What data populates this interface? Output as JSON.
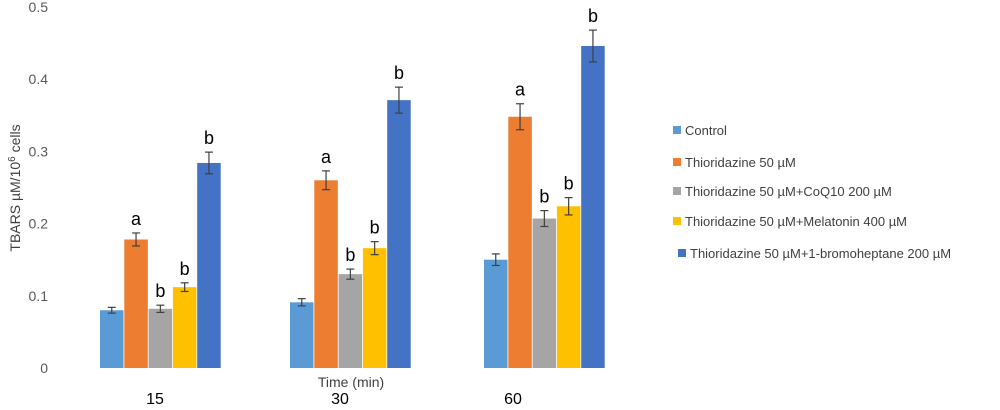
{
  "chart_data": {
    "type": "bar",
    "categories": [
      "15",
      "30",
      "60"
    ],
    "xlabel": "Time (min)",
    "ylabel": "TBARS µM/10",
    "ylabel_sup": "6",
    "ylabel_suffix": " cells",
    "ylim": [
      0,
      0.5
    ],
    "yticks": [
      "0",
      "0.1",
      "0.2",
      "0.3",
      "0.4",
      "0.5"
    ],
    "ytick_values": [
      0,
      0.1,
      0.2,
      0.3,
      0.4,
      0.5
    ],
    "grid": false,
    "legend_position": "right",
    "series": [
      {
        "name": "Control",
        "color": "#5B9BD5",
        "values": [
          0.08,
          0.091,
          0.15
        ],
        "errors": [
          0.004,
          0.005,
          0.008
        ],
        "labels": [
          "",
          "",
          ""
        ]
      },
      {
        "name": "Thioridazine 50 µM",
        "color": "#ED7D31",
        "values": [
          0.178,
          0.26,
          0.348
        ],
        "errors": [
          0.009,
          0.013,
          0.018
        ],
        "labels": [
          "a",
          "a",
          "a"
        ]
      },
      {
        "name": "Thioridazine 50 µM+CoQ10 200 µM",
        "color": "#A5A5A5",
        "values": [
          0.082,
          0.13,
          0.207
        ],
        "errors": [
          0.005,
          0.007,
          0.011
        ],
        "labels": [
          "b",
          "b",
          "b"
        ]
      },
      {
        "name": "Thioridazine 50 µM+Melatonin 400 µM",
        "color": "#FFC000",
        "values": [
          0.112,
          0.166,
          0.224
        ],
        "errors": [
          0.006,
          0.009,
          0.012
        ],
        "labels": [
          "b",
          "b",
          "b"
        ]
      },
      {
        "name": "Thioridazine 50 µM+1-bromoheptane 200 µM",
        "color": "#4472C4",
        "values": [
          0.284,
          0.371,
          0.446
        ],
        "errors": [
          0.015,
          0.018,
          0.022
        ],
        "labels": [
          "b",
          "b",
          "b"
        ]
      }
    ]
  }
}
